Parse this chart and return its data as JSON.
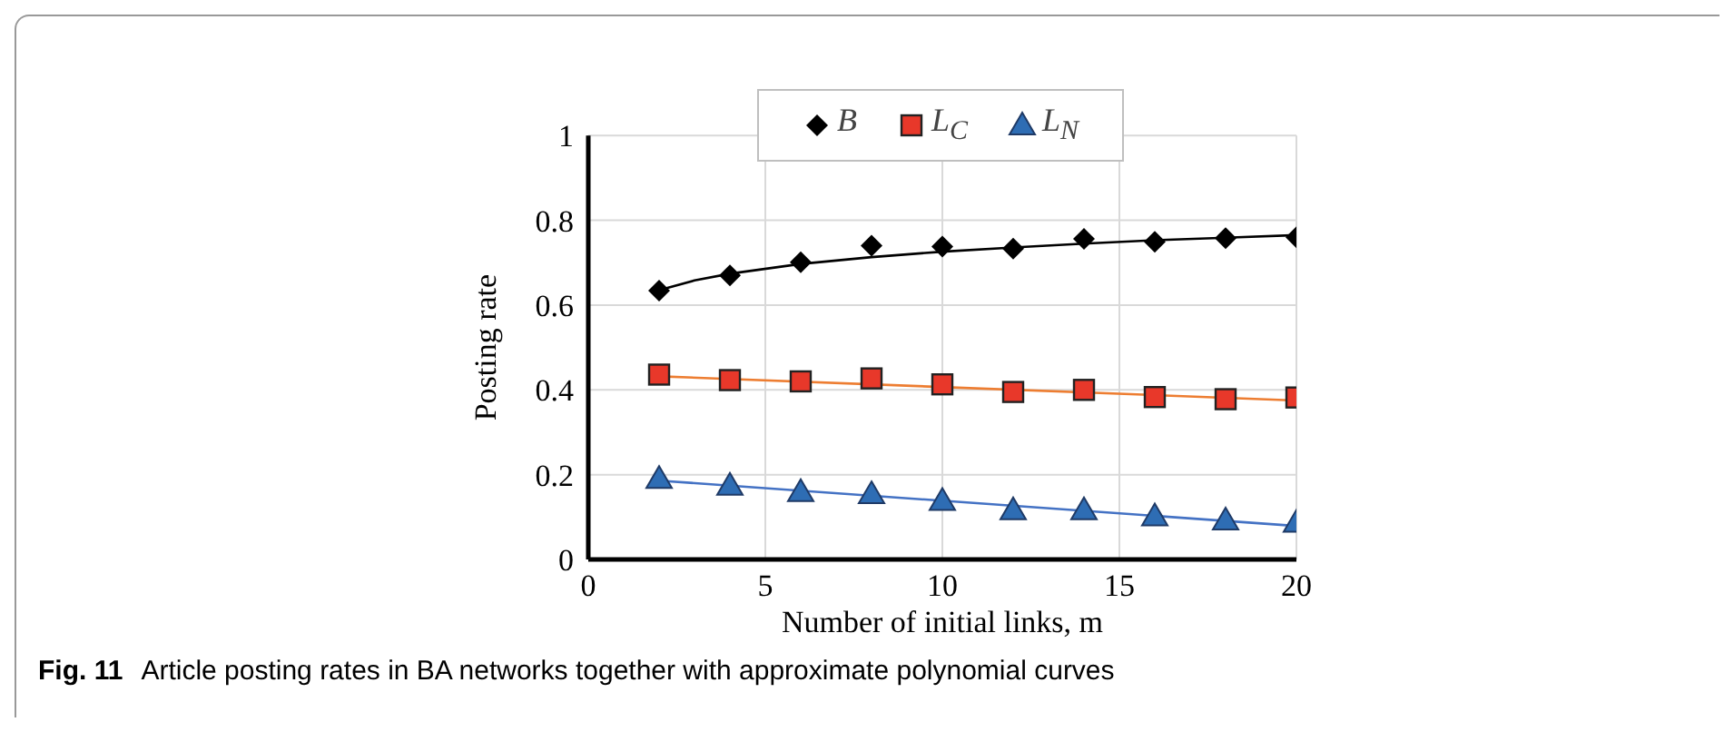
{
  "chart_data": {
    "type": "scatter",
    "xlabel": "Number of initial links, m",
    "ylabel": "Posting rate",
    "annotations": [
      "Fig. 11",
      "Article posting rates in BA networks together with approximate polynomial curves"
    ],
    "x": [
      2,
      4,
      6,
      8,
      10,
      12,
      14,
      16,
      18,
      20
    ],
    "series": [
      {
        "name": "B",
        "color": "#000000",
        "marker": "diamond",
        "values": [
          0.634,
          0.67,
          0.701,
          0.74,
          0.738,
          0.733,
          0.756,
          0.749,
          0.758,
          0.76
        ]
      },
      {
        "name": "L$_{C}$",
        "color": "#e8382a",
        "marker": "square",
        "values": [
          0.436,
          0.423,
          0.42,
          0.427,
          0.413,
          0.395,
          0.4,
          0.383,
          0.378,
          0.382
        ]
      },
      {
        "name": "L$_{N}$",
        "color": "#2e6db4",
        "marker": "triangle",
        "values": [
          0.19,
          0.174,
          0.159,
          0.154,
          0.138,
          0.116,
          0.116,
          0.102,
          0.092,
          0.087
        ]
      },
      {
        "type": "line",
        "color": "#000000",
        "marker": "none",
        "x": [
          2,
          3,
          4,
          6,
          8,
          10,
          12,
          14,
          16,
          18,
          20
        ],
        "values": [
          0.635,
          0.658,
          0.674,
          0.697,
          0.713,
          0.726,
          0.736,
          0.745,
          0.753,
          0.759,
          0.765
        ]
      },
      {
        "type": "line",
        "color": "#ed7d31",
        "marker": "none",
        "x": [
          2,
          20
        ],
        "values": [
          0.432,
          0.375
        ]
      },
      {
        "type": "line",
        "color": "#4472c4",
        "marker": "none",
        "x": [
          2,
          20
        ],
        "values": [
          0.186,
          0.079
        ]
      }
    ],
    "xlim": [
      0,
      20
    ],
    "xticks": [
      0,
      5,
      10,
      15,
      20
    ],
    "ylim": [
      0,
      1
    ],
    "yticks": [
      0,
      0.2,
      0.4,
      0.6,
      0.8,
      1
    ],
    "grid": true,
    "legend": "top"
  }
}
